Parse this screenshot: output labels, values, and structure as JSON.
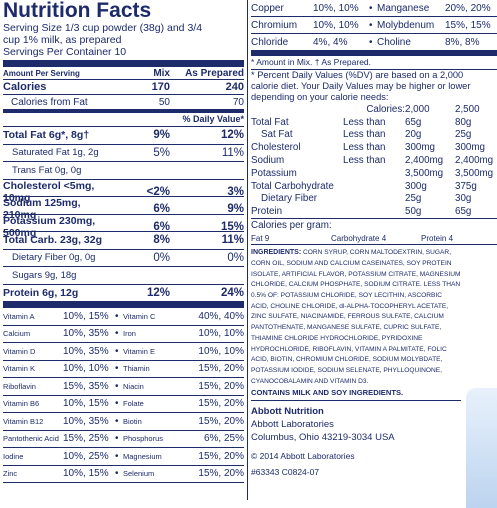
{
  "nutrition_facts": {
    "title": "Nutrition Facts",
    "serving_size": "Serving Size 1/3 cup powder (38g) and 3/4 cup 1% milk, as prepared",
    "servings": "Servings Per Container 10",
    "header": {
      "amount": "Amount Per Serving",
      "mix": "Mix",
      "prepared": "As Prepared"
    },
    "calories": {
      "name": "Calories",
      "mix": "170",
      "prepared": "240"
    },
    "calories_from_fat": {
      "name": "Calories from Fat",
      "mix": "50",
      "prepared": "70"
    },
    "daily_value_header": "% Daily Value*",
    "nutrients": [
      {
        "label": "Total Fat 6g*, 8g†",
        "mix": "9%",
        "prepared": "12%"
      },
      {
        "label": "Saturated Fat 1g, 2g",
        "mix": "5%",
        "prepared": "11%"
      },
      {
        "label": "Trans Fat 0g, 0g"
      },
      {
        "label": "Cholesterol <5mg, 10mg",
        "mix": "<2%",
        "prepared": "3%"
      },
      {
        "label": "Sodium 125mg, 210mg",
        "mix": "6%",
        "prepared": "9%"
      },
      {
        "label": "Potassium 230mg, 500mg",
        "mix": "6%",
        "prepared": "15%"
      },
      {
        "label": "Total Carb. 23g, 32g",
        "mix": "8%",
        "prepared": "11%"
      },
      {
        "label": "Dietary Fiber 0g, 0g",
        "mix": "0%",
        "prepared": "0%"
      },
      {
        "label": "Sugars 9g, 18g"
      },
      {
        "label": "Protein 6g, 12g",
        "mix": "12%",
        "prepared": "24%"
      }
    ],
    "vitamins": [
      [
        "Vitamin A",
        "10%, 15%",
        "Vitamin C",
        "40%, 40%"
      ],
      [
        "Calcium",
        "10%, 35%",
        "Iron",
        "10%, 10%"
      ],
      [
        "Vitamin D",
        "10%, 35%",
        "Vitamin E",
        "10%, 10%"
      ],
      [
        "Vitamin K",
        "10%, 10%",
        "Thiamin",
        "15%, 20%"
      ],
      [
        "Riboflavin",
        "15%, 35%",
        "Niacin",
        "15%, 20%"
      ],
      [
        "Vitamin B6",
        "10%, 15%",
        "Folate",
        "15%, 20%"
      ],
      [
        "Vitamin B12",
        "10%, 35%",
        "Biotin",
        "15%, 20%"
      ],
      [
        "Pantothenic Acid",
        "15%, 25%",
        "Phosphorus",
        "6%, 25%"
      ],
      [
        "Iodine",
        "10%, 25%",
        "Magnesium",
        "15%, 20%"
      ],
      [
        "Zinc",
        "10%, 15%",
        "Selenium",
        "15%, 20%"
      ]
    ]
  },
  "right_panel": {
    "minerals": [
      [
        "Copper",
        "10%, 10%",
        "Manganese",
        "20%, 20%"
      ],
      [
        "Chromium",
        "10%, 10%",
        "Molybdenum",
        "15%, 15%"
      ],
      [
        "Chloride",
        "4%, 4%",
        "Choline",
        "8%, 8%"
      ]
    ],
    "footnote": "* Amount in Mix. † As Prepared.",
    "dv_note": "* Percent Daily Values (%DV) are based on a 2,000 calorie diet. Your Daily Values may be higher or lower depending on your calorie needs:",
    "dv_table": {
      "header": [
        "Calories:",
        "2,000",
        "2,500"
      ],
      "rows": [
        [
          "Total Fat",
          "Less than",
          "65g",
          "80g"
        ],
        [
          "Sat Fat",
          "Less than",
          "20g",
          "25g"
        ],
        [
          "Cholesterol",
          "Less than",
          "300mg",
          "300mg"
        ],
        [
          "Sodium",
          "Less than",
          "2,400mg",
          "2,400mg"
        ],
        [
          "Potassium",
          "3,500mg",
          "3,500mg"
        ],
        [
          "Total Carbohydrate",
          "300g",
          "375g"
        ],
        [
          "Dietary Fiber",
          "25g",
          "30g"
        ],
        [
          "Protein",
          "50g",
          "65g"
        ]
      ]
    },
    "calories_per_gram": "Calories per gram:",
    "per_gram": [
      "Fat 9",
      "Carbohydrate 4",
      "Protein 4"
    ],
    "ingredients_label": "INGREDIENTS:",
    "ingredients": "CORN SYRUP, CORN MALTODEXTRIN, SUGAR, CORN OIL, SODIUM AND CALCIUM CASEINATES, SOY PROTEIN ISOLATE, ARTIFICIAL FLAVOR, POTASSIUM CITRATE, MAGNESIUM CHLORIDE, CALCIUM PHOSPHATE, SODIUM CITRATE. LESS THAN 0.5% OF: POTASSIUM CHLORIDE, SOY LECITHIN, ASCORBIC ACID, CHOLINE CHLORIDE, dl-ALPHA-TOCOPHERYL ACETATE, ZINC SULFATE, NIACINAMIDE, FERROUS SULFATE, CALCIUM PANTOTHENATE, MANGANESE SULFATE, CUPRIC SULFATE, THIAMINE CHLORIDE HYDROCHLORIDE, PYRIDOXINE HYDROCHLORIDE, RIBOFLAVIN, VITAMIN A PALMITATE, FOLIC ACID, BIOTIN, CHROMIUM CHLORIDE, SODIUM MOLYBDATE, POTASSIUM IODIDE, SODIUM SELENATE, PHYLLOQUINONE, CYANOCOBALAMIN AND VITAMIN D3.",
    "contains": "CONTAINS MILK AND SOY INGREDIENTS.",
    "company": [
      "Abbott Nutrition",
      "Abbott Laboratories",
      "Columbus, Ohio 43219-3034 USA"
    ],
    "copyright": "© 2014 Abbott Laboratories",
    "code": "#63343 C0824-07"
  }
}
